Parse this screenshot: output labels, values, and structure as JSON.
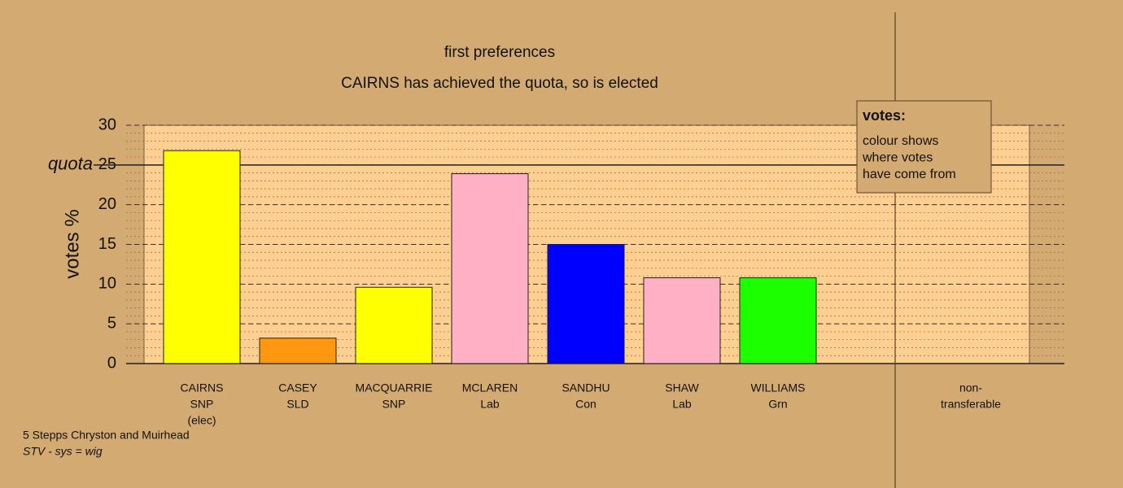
{
  "chart_data": {
    "type": "bar",
    "title": "first preferences",
    "subtitle": "CAIRNS has achieved the quota, so is elected",
    "y_label": "votes %",
    "categories": [
      [
        "CAIRNS",
        "SNP",
        "(elec)"
      ],
      [
        "CASEY",
        "SLD"
      ],
      [
        "MACQUARRIE",
        "SNP"
      ],
      [
        "MCLAREN",
        "Lab"
      ],
      [
        "SANDHU",
        "Con"
      ],
      [
        "SHAW",
        "Lab"
      ],
      [
        "WILLIAMS",
        "Grn"
      ],
      [
        "non-",
        "transferable"
      ]
    ],
    "values": [
      26.8,
      3.2,
      9.6,
      23.9,
      15.0,
      10.8,
      10.8,
      0
    ],
    "colors": [
      "#ffff00",
      "#ff9810",
      "#ffff00",
      "#ffb0c4",
      "#0000ff",
      "#ffb0c4",
      "#1cff00",
      "#ffffff"
    ],
    "ylim": [
      0,
      30
    ],
    "yticks": [
      0,
      5,
      10,
      15,
      20,
      25,
      30
    ],
    "grid": true,
    "minor_grid": true,
    "quota": {
      "value": 25,
      "label": "quota"
    },
    "legend": {
      "title": "votes:",
      "lines": [
        "colour shows",
        "where votes",
        "have come from"
      ]
    },
    "footer": [
      "5 Stepps Chryston and Muirhead",
      "STV - sys = wig"
    ]
  }
}
